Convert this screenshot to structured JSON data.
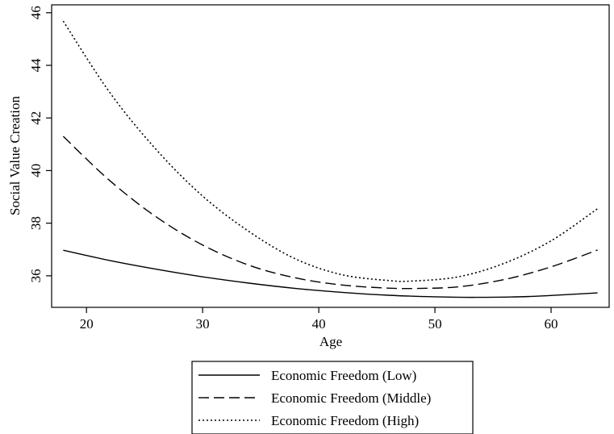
{
  "chart_data": {
    "type": "line",
    "title": "",
    "xlabel": "Age",
    "ylabel": "Social Value Creation",
    "xlim": [
      17,
      65
    ],
    "ylim": [
      34.8,
      46.3
    ],
    "x_ticks": [
      20,
      30,
      40,
      50,
      60
    ],
    "y_ticks": [
      36,
      38,
      40,
      42,
      44,
      46
    ],
    "grid": false,
    "legend_position": "bottom",
    "series": [
      {
        "name": "Economic Freedom (Low)",
        "style": "solid",
        "x": [
          18,
          22,
          26,
          30,
          34,
          38,
          42,
          46,
          50,
          53.5,
          58,
          62,
          64
        ],
        "y": [
          36.97,
          36.58,
          36.25,
          35.96,
          35.72,
          35.52,
          35.37,
          35.26,
          35.2,
          35.18,
          35.21,
          35.3,
          35.35
        ]
      },
      {
        "name": "Economic Freedom (Middle)",
        "style": "dashed",
        "x": [
          18,
          22,
          26,
          30,
          34,
          38,
          42,
          46,
          48.5,
          52,
          56,
          60,
          64
        ],
        "y": [
          41.3,
          39.62,
          38.24,
          37.17,
          36.4,
          35.92,
          35.65,
          35.53,
          35.52,
          35.58,
          35.86,
          36.34,
          36.98
        ]
      },
      {
        "name": "Economic Freedom (High)",
        "style": "dotted",
        "x": [
          18,
          22,
          26,
          30,
          34,
          38,
          42,
          46,
          48,
          52,
          56,
          60,
          64
        ],
        "y": [
          45.68,
          42.97,
          40.8,
          39.03,
          37.68,
          36.64,
          36.04,
          35.82,
          35.8,
          35.96,
          36.48,
          37.33,
          38.55
        ]
      }
    ]
  }
}
